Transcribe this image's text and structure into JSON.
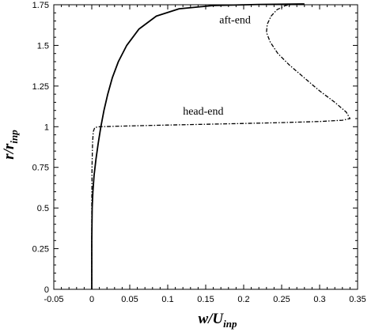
{
  "chart_data": {
    "type": "line",
    "xlabel": {
      "main": "w/U",
      "sub": "inp"
    },
    "ylabel": {
      "main": "r/r",
      "sub": "inp"
    },
    "xlim": [
      -0.05,
      0.35
    ],
    "ylim": [
      0,
      1.75
    ],
    "xticks": [
      "-0.05",
      "0",
      "0.05",
      "0.1",
      "0.15",
      "0.2",
      "0.25",
      "0.3",
      "0.35"
    ],
    "yticks": [
      "0",
      "0.25",
      "0.5",
      "0.75",
      "1",
      "1.25",
      "1.5",
      "1.75"
    ],
    "grid": false,
    "legend": "none",
    "annotations": [
      {
        "text": "aft-end",
        "x": 0.168,
        "y": 1.635
      },
      {
        "text": "head-end",
        "x": 0.12,
        "y": 1.075
      }
    ],
    "series": [
      {
        "style": "solid",
        "points": [
          [
            0,
            0
          ],
          [
            0,
            0.3
          ],
          [
            0.0005,
            0.5
          ],
          [
            0.0015,
            0.6
          ],
          [
            0.003,
            0.7
          ],
          [
            0.0055,
            0.8
          ],
          [
            0.0085,
            0.9
          ],
          [
            0.012,
            1.0
          ],
          [
            0.016,
            1.1
          ],
          [
            0.021,
            1.2
          ],
          [
            0.027,
            1.3
          ],
          [
            0.035,
            1.4
          ],
          [
            0.046,
            1.5
          ],
          [
            0.062,
            1.6
          ],
          [
            0.085,
            1.68
          ],
          [
            0.115,
            1.725
          ],
          [
            0.16,
            1.745
          ],
          [
            0.22,
            1.752
          ],
          [
            0.28,
            1.755
          ]
        ]
      },
      {
        "style": "dash-dot",
        "points": [
          [
            0,
            0
          ],
          [
            0,
            0.5
          ],
          [
            0.0003,
            0.75
          ],
          [
            0.001,
            0.9
          ],
          [
            0.002,
            0.97
          ],
          [
            0.004,
            0.995
          ],
          [
            0.01,
            1.0
          ],
          [
            0.05,
            1.005
          ],
          [
            0.1,
            1.01
          ],
          [
            0.15,
            1.015
          ],
          [
            0.2,
            1.02
          ],
          [
            0.25,
            1.025
          ],
          [
            0.3,
            1.032
          ],
          [
            0.33,
            1.04
          ],
          [
            0.34,
            1.05
          ],
          [
            0.335,
            1.09
          ],
          [
            0.32,
            1.15
          ],
          [
            0.3,
            1.22
          ],
          [
            0.28,
            1.3
          ],
          [
            0.26,
            1.38
          ],
          [
            0.245,
            1.45
          ],
          [
            0.235,
            1.52
          ],
          [
            0.23,
            1.58
          ],
          [
            0.231,
            1.63
          ],
          [
            0.236,
            1.68
          ],
          [
            0.244,
            1.72
          ],
          [
            0.255,
            1.745
          ],
          [
            0.265,
            1.752
          ]
        ]
      }
    ]
  }
}
